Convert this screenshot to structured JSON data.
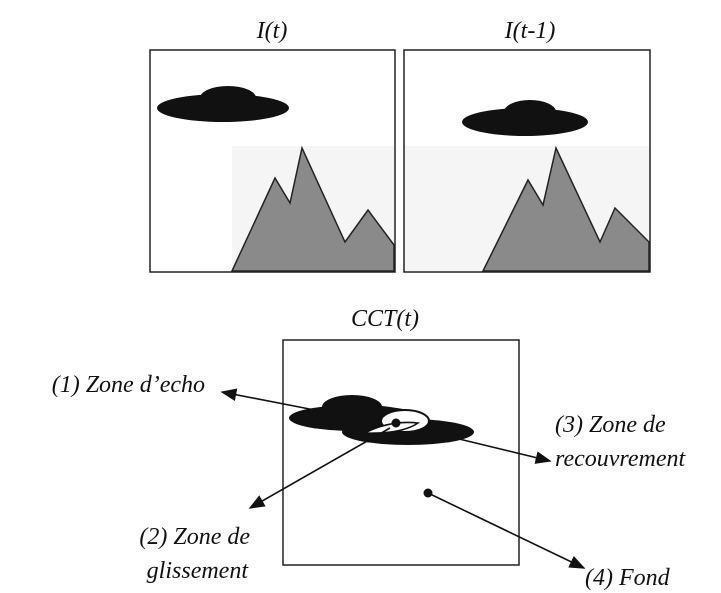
{
  "frames": [
    {
      "label": "I(t)"
    },
    {
      "label": "I(t-1)"
    }
  ],
  "result": {
    "label": "CCT(t)"
  },
  "zones": [
    {
      "lines": [
        "(1) Zone d’echo"
      ]
    },
    {
      "lines": [
        "(2) Zone de",
        "glissement"
      ]
    },
    {
      "lines": [
        "(3) Zone de",
        "recouvrement"
      ]
    },
    {
      "lines": [
        "(4) Fond"
      ]
    }
  ]
}
